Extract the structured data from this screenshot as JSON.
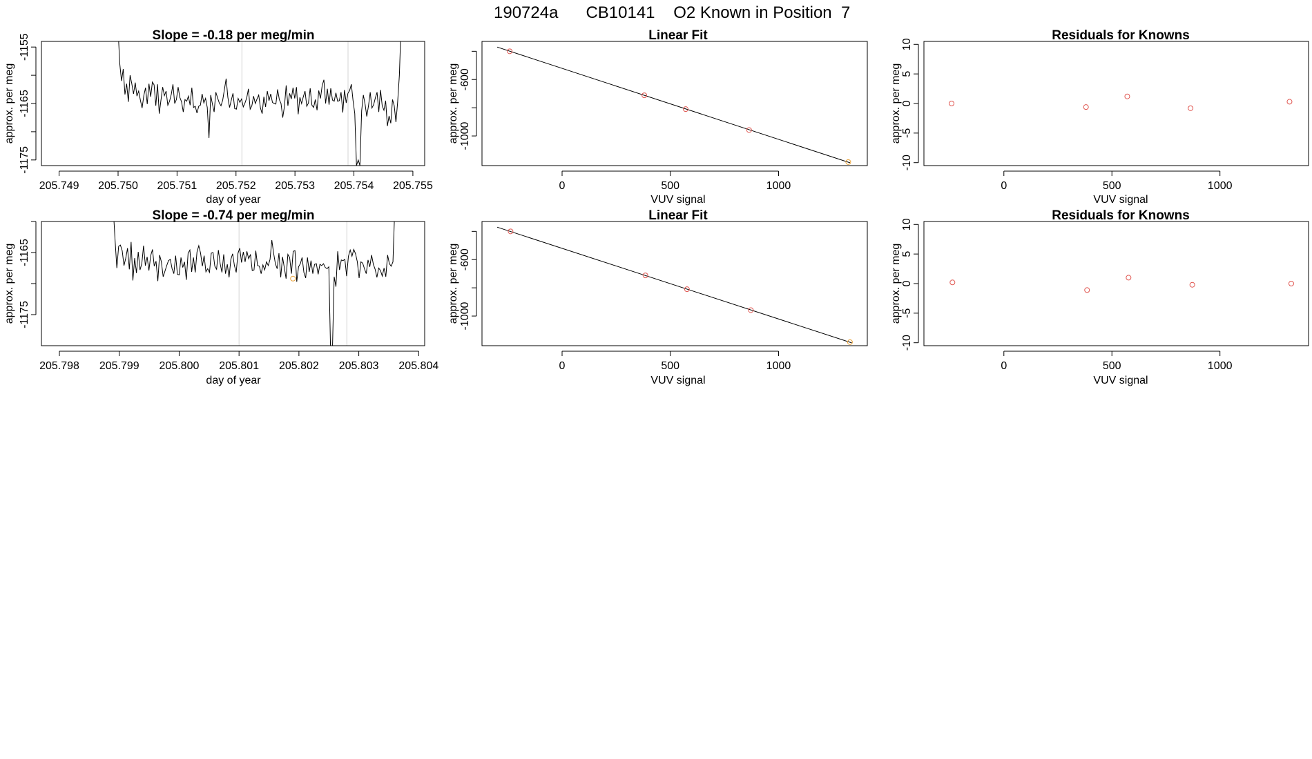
{
  "figure_title": "190724a      CB10141    O2 Known in Position  7",
  "colors": {
    "points": "#e0554f",
    "highlight": "#e8a23a",
    "line": "#000000",
    "guide": "#d3d3d3"
  },
  "chart_data": [
    {
      "id": "slope_1",
      "type": "line",
      "title": "Slope =  -0.18  per meg/min",
      "xlabel": "day of year",
      "ylabel": "approx. per meg",
      "xlim": [
        205.7487,
        205.7552
      ],
      "ylim": [
        -1176,
        -1154
      ],
      "x_ticks": [
        205.749,
        205.75,
        205.751,
        205.752,
        205.753,
        205.754,
        205.755
      ],
      "x_tick_labels": [
        "205.749",
        "205.750",
        "205.751",
        "205.752",
        "205.753",
        "205.754",
        "205.755"
      ],
      "y_ticks": [
        -1175,
        -1170,
        -1165,
        -1160,
        -1155
      ],
      "y_tick_labels": [
        "-1175",
        "",
        "-1165",
        "",
        "-1155"
      ],
      "vlines": [
        205.7521,
        205.7539
      ],
      "x_start": 205.75,
      "x_end": 205.7548,
      "values": [
        -1152,
        -1158,
        -1161,
        -1158.9,
        -1163.4,
        -1161.5,
        -1164.7,
        -1160,
        -1161.5,
        -1163.3,
        -1161.3,
        -1163.7,
        -1162.8,
        -1164.4,
        -1165.8,
        -1163.6,
        -1162.2,
        -1165.1,
        -1161.5,
        -1163.8,
        -1161.2,
        -1161.7,
        -1165.4,
        -1161.6,
        -1166.8,
        -1164.4,
        -1162.1,
        -1163.6,
        -1162.8,
        -1165.3,
        -1164.6,
        -1163.4,
        -1161.6,
        -1165,
        -1164.3,
        -1162.1,
        -1163.9,
        -1164.7,
        -1166.5,
        -1164.3,
        -1164.6,
        -1163.7,
        -1165.3,
        -1162.2,
        -1165.7,
        -1165.5,
        -1166.7,
        -1165.5,
        -1165.3,
        -1163.3,
        -1164.9,
        -1164.1,
        -1165.7,
        -1171.1,
        -1163.5,
        -1165.1,
        -1166.5,
        -1163,
        -1164,
        -1164.9,
        -1165.4,
        -1164.4,
        -1162.5,
        -1160.6,
        -1163.9,
        -1165.7,
        -1164.4,
        -1163.2,
        -1165.9,
        -1166,
        -1164.1,
        -1164.8,
        -1164.2,
        -1165.6,
        -1164.9,
        -1164,
        -1162.4,
        -1166,
        -1165.4,
        -1163.7,
        -1165,
        -1164.2,
        -1163.5,
        -1165.8,
        -1166.8,
        -1163.8,
        -1165.6,
        -1162.8,
        -1164.5,
        -1163.3,
        -1164.8,
        -1165,
        -1165.1,
        -1162.5,
        -1164.3,
        -1165,
        -1167.5,
        -1165.5,
        -1161.8,
        -1165.4,
        -1163.2,
        -1164.2,
        -1162.2,
        -1164.1,
        -1162.1,
        -1166.9,
        -1163.9,
        -1165,
        -1163.8,
        -1162.8,
        -1165.5,
        -1164.9,
        -1162.3,
        -1165.3,
        -1165.7,
        -1164.3,
        -1166.2,
        -1162.7,
        -1164.1,
        -1161.8,
        -1160.8,
        -1165,
        -1162.4,
        -1165.2,
        -1162.3,
        -1164.4,
        -1164.6,
        -1163.1,
        -1164.6,
        -1164.5,
        -1163,
        -1166.6,
        -1162.6,
        -1164.9,
        -1163.2,
        -1162.7,
        -1161.6,
        -1164.5,
        -1166.8,
        -1176,
        -1175,
        -1176,
        -1166.3,
        -1163.5,
        -1165.1,
        -1167.3,
        -1165.4,
        -1163,
        -1165.8,
        -1165.2,
        -1164,
        -1163,
        -1166.5,
        -1162.6,
        -1165.4,
        -1166.2,
        -1164.5,
        -1169,
        -1167.2,
        -1168.5,
        -1164.3,
        -1165.4,
        -1168.3,
        -1164.7,
        -1160,
        -1151
      ]
    },
    {
      "id": "fit_1",
      "type": "scatter",
      "title": "Linear Fit",
      "xlabel": "VUV signal",
      "ylabel": "approx. per meg",
      "xlim": [
        -370,
        1410
      ],
      "ylim": [
        -1210,
        -330
      ],
      "x_ticks": [
        0,
        500,
        1000
      ],
      "x_tick_labels": [
        "0",
        "500",
        "1000"
      ],
      "y_ticks": [
        -1000,
        -800,
        -600,
        -400
      ],
      "y_tick_labels": [
        "-1000",
        "",
        "-600",
        ""
      ],
      "points": [
        [
          -242,
          -400
        ],
        [
          380,
          -712
        ],
        [
          571,
          -810
        ],
        [
          864,
          -958
        ],
        [
          1322,
          -1185
        ]
      ],
      "highlight_index": 4,
      "fit_line": [
        [
          -300,
          -370
        ],
        [
          1330,
          -1190
        ]
      ]
    },
    {
      "id": "resid_1",
      "type": "scatter",
      "title": "Residuals for Knowns",
      "xlabel": "VUV signal",
      "ylabel": "approx. per meg",
      "xlim": [
        -370,
        1410
      ],
      "ylim": [
        -10.5,
        10.5
      ],
      "x_ticks": [
        0,
        500,
        1000
      ],
      "x_tick_labels": [
        "0",
        "500",
        "1000"
      ],
      "y_ticks": [
        -10,
        -5,
        0,
        5,
        10
      ],
      "y_tick_labels": [
        "-10",
        "-5",
        "0",
        "5",
        "10"
      ],
      "points": [
        [
          -242,
          0
        ],
        [
          380,
          -0.6
        ],
        [
          571,
          1.2
        ],
        [
          864,
          -0.8
        ],
        [
          1322,
          0.3
        ]
      ]
    },
    {
      "id": "slope_2",
      "type": "line",
      "title": "Slope =  -0.74  per meg/min",
      "xlabel": "day of year",
      "ylabel": "approx. per meg",
      "xlim": [
        205.7977,
        205.8041
      ],
      "ylim": [
        -1180,
        -1160
      ],
      "x_ticks": [
        205.798,
        205.799,
        205.8,
        205.801,
        205.802,
        205.803,
        205.804
      ],
      "x_tick_labels": [
        "205.798",
        "205.799",
        "205.800",
        "205.801",
        "205.802",
        "205.803",
        "205.804"
      ],
      "y_ticks": [
        -1175,
        -1170,
        -1165,
        -1160
      ],
      "y_tick_labels": [
        "-1175",
        "",
        "-1165",
        ""
      ],
      "vlines": [
        205.801,
        205.8028
      ],
      "x_start": 205.7989,
      "x_end": 205.8036,
      "highlight_point": [
        205.8019,
        -1169.2
      ],
      "values": [
        -1158,
        -1163,
        -1167.5,
        -1164,
        -1163.8,
        -1164.7,
        -1167.1,
        -1165.9,
        -1164.3,
        -1167.7,
        -1163.3,
        -1169.5,
        -1165.9,
        -1168.3,
        -1164.9,
        -1167.8,
        -1166.8,
        -1163.9,
        -1167.1,
        -1165.7,
        -1167.9,
        -1165.5,
        -1164.5,
        -1167.2,
        -1166.4,
        -1169.6,
        -1165.4,
        -1166.5,
        -1168.9,
        -1168,
        -1167.1,
        -1166.3,
        -1166.1,
        -1167.6,
        -1168.4,
        -1165.5,
        -1168.5,
        -1168.6,
        -1165.8,
        -1167.4,
        -1166.5,
        -1169.4,
        -1165.1,
        -1164.6,
        -1168.1,
        -1165.8,
        -1168.2,
        -1164.9,
        -1163.9,
        -1165.1,
        -1167.2,
        -1165.5,
        -1168.1,
        -1167.6,
        -1168.2,
        -1165.1,
        -1165,
        -1167.2,
        -1167.7,
        -1164.6,
        -1166.8,
        -1168.2,
        -1165.3,
        -1168.4,
        -1166.9,
        -1169,
        -1166.1,
        -1165.2,
        -1167.1,
        -1168.2,
        -1165.1,
        -1164.3,
        -1166.6,
        -1164.9,
        -1166.5,
        -1164.8,
        -1166,
        -1165.3,
        -1167.9,
        -1167.8,
        -1164.7,
        -1167.1,
        -1167.2,
        -1168.4,
        -1167,
        -1167.8,
        -1166.5,
        -1167.1,
        -1166.1,
        -1163,
        -1165.1,
        -1166.8,
        -1167.6,
        -1165.1,
        -1169,
        -1165.7,
        -1167.4,
        -1169.2,
        -1165.3,
        -1165.8,
        -1168.4,
        -1164.8,
        -1164.7,
        -1169.7,
        -1167.3,
        -1166.8,
        -1165.8,
        -1168.2,
        -1169.1,
        -1165.8,
        -1168.1,
        -1166.3,
        -1168.4,
        -1166.9,
        -1166.8,
        -1168.5,
        -1166.9,
        -1167.1,
        -1166.8,
        -1167.4,
        -1167.6,
        -1167.3,
        -1181,
        -1181,
        -1168.9,
        -1170.5,
        -1164.8,
        -1167.8,
        -1166.2,
        -1166.3,
        -1166.1,
        -1168.8,
        -1165.6,
        -1164.6,
        -1165.6,
        -1164.5,
        -1165.2,
        -1166.5,
        -1169.1,
        -1166.5,
        -1166.7,
        -1167.6,
        -1168.4,
        -1166.2,
        -1167.3,
        -1165.4,
        -1166.9,
        -1167.7,
        -1169,
        -1167.5,
        -1167.9,
        -1168.8,
        -1167.5,
        -1168.9,
        -1165.4,
        -1166.8,
        -1167.2,
        -1166.5,
        -1158
      ]
    },
    {
      "id": "fit_2",
      "type": "scatter",
      "title": "Linear Fit",
      "xlabel": "VUV signal",
      "ylabel": "approx. per meg",
      "xlim": [
        -370,
        1410
      ],
      "ylim": [
        -1210,
        -330
      ],
      "x_ticks": [
        0,
        500,
        1000
      ],
      "x_tick_labels": [
        "0",
        "500",
        "1000"
      ],
      "y_ticks": [
        -1000,
        -800,
        -600,
        -400
      ],
      "y_tick_labels": [
        "-1000",
        "",
        "-600",
        ""
      ],
      "points": [
        [
          -238,
          -400
        ],
        [
          385,
          -712
        ],
        [
          577,
          -810
        ],
        [
          872,
          -958
        ],
        [
          1330,
          -1185
        ]
      ],
      "highlight_index": 4,
      "fit_line": [
        [
          -300,
          -370
        ],
        [
          1338,
          -1190
        ]
      ]
    },
    {
      "id": "resid_2",
      "type": "scatter",
      "title": "Residuals for Knowns",
      "xlabel": "VUV signal",
      "ylabel": "approx. per meg",
      "xlim": [
        -370,
        1410
      ],
      "ylim": [
        -10.5,
        10.5
      ],
      "x_ticks": [
        0,
        500,
        1000
      ],
      "x_tick_labels": [
        "0",
        "500",
        "1000"
      ],
      "y_ticks": [
        -10,
        -5,
        0,
        5,
        10
      ],
      "y_tick_labels": [
        "-10",
        "-5",
        "0",
        "5",
        "10"
      ],
      "points": [
        [
          -238,
          0.2
        ],
        [
          385,
          -1.1
        ],
        [
          577,
          1
        ],
        [
          872,
          -0.2
        ],
        [
          1330,
          0
        ]
      ]
    }
  ]
}
